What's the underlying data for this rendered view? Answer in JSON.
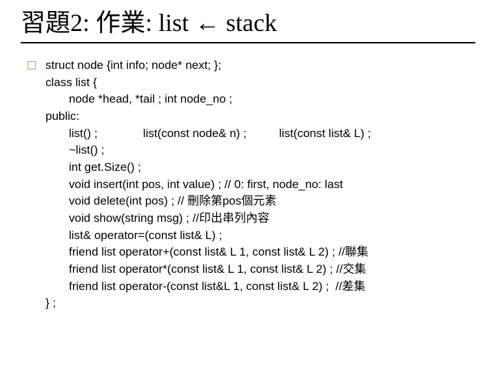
{
  "title": "習題2: 作業: list ← stack",
  "code": {
    "lines": [
      {
        "text": "struct node {int info; node* next; };",
        "indent": 1
      },
      {
        "text": "class list {",
        "indent": 1
      },
      {
        "text": "node *head, *tail ; int node_no ;",
        "indent": 2
      },
      {
        "text": "public:",
        "indent": 1
      },
      {
        "text": "list() ;              list(const node& n) ;          list(const list& L) ;",
        "indent": 2
      },
      {
        "text": "~list() ;",
        "indent": 2
      },
      {
        "text": "int get.Size() ;",
        "indent": 2
      },
      {
        "text": "void insert(int pos, int value) ; // 0: first, node_no: last",
        "indent": 2
      },
      {
        "text": "void delete(int pos) ; // 刪除第pos個元素",
        "indent": 2
      },
      {
        "text": "void show(string msg) ; //印出串列內容",
        "indent": 2
      },
      {
        "text": "list& operator=(const list& L) ;",
        "indent": 2
      },
      {
        "text": "friend list operator+(const list& L 1, const list& L 2) ; //聯集",
        "indent": 2
      },
      {
        "text": "friend list operator*(const list& L 1, const list& L 2) ; //交集",
        "indent": 2
      },
      {
        "text": "friend list operator-(const list&L 1, const list& L 2) ;  //差集",
        "indent": 2
      },
      {
        "text": "} ;",
        "indent": 1
      }
    ]
  },
  "style": {
    "title_fontsize": 36,
    "code_fontsize": 17,
    "title_color": "#000000",
    "code_color": "#000000",
    "underline_color": "#000000",
    "bullet_border": "#c0a050",
    "background": "#ffffff"
  }
}
